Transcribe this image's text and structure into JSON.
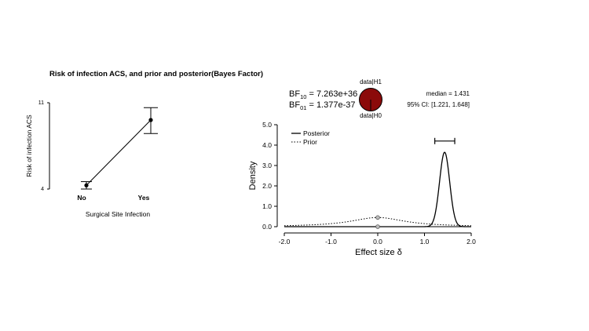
{
  "figure_title": "Risk of infection ACS, and prior and posterior(Bayes  Factor)",
  "chart_data": [
    {
      "type": "line",
      "title": "",
      "xlabel": "Surgical Site Infection",
      "ylabel": "Risk of infection ACS",
      "categories": [
        "No",
        "Yes"
      ],
      "values": [
        4.3,
        9.6
      ],
      "error_low": [
        4.0,
        8.5
      ],
      "error_high": [
        4.6,
        10.6
      ],
      "y_tick_labels": [
        "4",
        "11"
      ],
      "ylim": [
        4,
        11
      ],
      "grid": false
    },
    {
      "type": "line",
      "title": "",
      "xlabel": "Effect size δ",
      "ylabel": "Density",
      "xlim": [
        -2.0,
        2.0
      ],
      "ylim": [
        0,
        5.0
      ],
      "x_ticks": [
        "-2.0",
        "-1.0",
        "0.0",
        "1.0",
        "2.0"
      ],
      "y_ticks": [
        "0.0",
        "1.0",
        "2.0",
        "3.0",
        "4.0",
        "5.0"
      ],
      "grid": false,
      "legend_position": "top-left",
      "series": [
        {
          "name": "Posterior",
          "style": "solid",
          "peak_x": 1.431,
          "peak_y": 3.65,
          "sd": 0.108
        },
        {
          "name": "Prior",
          "style": "dotted",
          "distribution": "cauchy",
          "scale": 0.707
        }
      ],
      "points": [
        {
          "label": "prior_at_0",
          "x": 0.0,
          "y": 0.45
        },
        {
          "label": "posterior_at_0",
          "x": 0.0,
          "y": 0.0
        }
      ],
      "credible_interval": {
        "low": 1.221,
        "high": 1.648,
        "y": 4.2
      },
      "annotations": {
        "bf10_label": "BF",
        "bf10_sub": "10",
        "bf10_value": " = 7.263e+36",
        "bf01_label": "BF",
        "bf01_sub": "01",
        "bf01_value": " = 1.377e-37",
        "wheel_top": "data|H1",
        "wheel_bottom": "data|H0",
        "median_text": "median = 1.431",
        "ci_text": "95% CI: [1.221, 1.648]"
      },
      "colors": {
        "wheel_fill": "#8b0a0a",
        "line": "#000000",
        "point_fill": "#bdbdbd"
      }
    }
  ]
}
